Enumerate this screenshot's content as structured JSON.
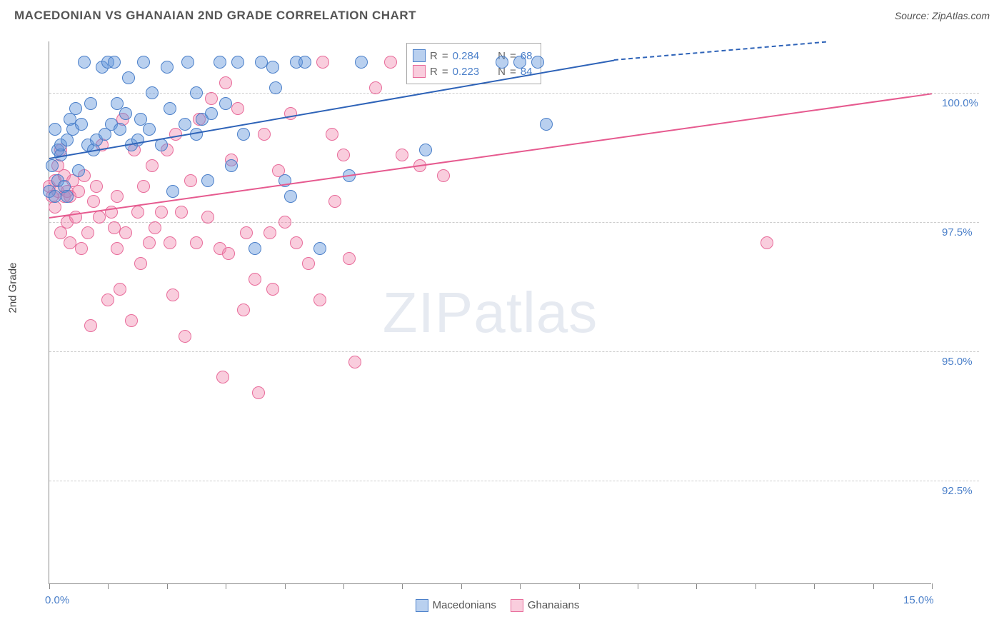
{
  "title": "MACEDONIAN VS GHANAIAN 2ND GRADE CORRELATION CHART",
  "source": "Source: ZipAtlas.com",
  "y_axis_title": "2nd Grade",
  "watermark_bold": "ZIP",
  "watermark_light": "atlas",
  "xlim": [
    0,
    15
  ],
  "ylim": [
    90.5,
    101
  ],
  "x_ticks": [
    0,
    1,
    2,
    3,
    4,
    5,
    6,
    7,
    8,
    9,
    10,
    11,
    12,
    13,
    14,
    15
  ],
  "x_labels": [
    {
      "v": 0,
      "t": "0.0%"
    },
    {
      "v": 15,
      "t": "15.0%"
    }
  ],
  "y_gridlines": [
    92.5,
    95.0,
    97.5,
    100.0
  ],
  "y_labels": [
    {
      "v": 92.5,
      "t": "92.5%"
    },
    {
      "v": 95.0,
      "t": "95.0%"
    },
    {
      "v": 97.5,
      "t": "97.5%"
    },
    {
      "v": 100.0,
      "t": "100.0%"
    }
  ],
  "series": [
    {
      "name": "Macedonians",
      "fill": "rgba(100,150,220,0.45)",
      "stroke": "#4a7fc9",
      "line_color": "#2e63b8",
      "R": "0.284",
      "N": "68",
      "trend": {
        "x1": 0,
        "y1": 98.75,
        "x2_solid": 9.6,
        "y2_solid": 100.65,
        "x2": 13.2,
        "y2": 101.0
      },
      "points": [
        [
          0.0,
          98.1
        ],
        [
          0.05,
          98.6
        ],
        [
          0.1,
          98.0
        ],
        [
          0.1,
          99.3
        ],
        [
          0.15,
          98.3
        ],
        [
          0.15,
          98.9
        ],
        [
          0.2,
          98.8
        ],
        [
          0.2,
          99.0
        ],
        [
          0.25,
          98.2
        ],
        [
          0.3,
          99.1
        ],
        [
          0.3,
          98.0
        ],
        [
          0.35,
          99.5
        ],
        [
          0.4,
          99.3
        ],
        [
          0.45,
          99.7
        ],
        [
          0.5,
          98.5
        ],
        [
          0.55,
          99.4
        ],
        [
          0.6,
          100.6
        ],
        [
          0.65,
          99.0
        ],
        [
          0.7,
          99.8
        ],
        [
          0.75,
          98.9
        ],
        [
          0.8,
          99.1
        ],
        [
          0.9,
          100.5
        ],
        [
          0.95,
          99.2
        ],
        [
          1.0,
          100.6
        ],
        [
          1.05,
          99.4
        ],
        [
          1.1,
          100.6
        ],
        [
          1.15,
          99.8
        ],
        [
          1.2,
          99.3
        ],
        [
          1.3,
          99.6
        ],
        [
          1.35,
          100.3
        ],
        [
          1.4,
          99.0
        ],
        [
          1.5,
          99.1
        ],
        [
          1.55,
          99.5
        ],
        [
          1.6,
          100.6
        ],
        [
          1.7,
          99.3
        ],
        [
          1.75,
          100.0
        ],
        [
          1.9,
          99.0
        ],
        [
          2.0,
          100.5
        ],
        [
          2.05,
          99.7
        ],
        [
          2.1,
          98.1
        ],
        [
          2.3,
          99.4
        ],
        [
          2.35,
          100.6
        ],
        [
          2.5,
          100.0
        ],
        [
          2.5,
          99.2
        ],
        [
          2.6,
          99.5
        ],
        [
          2.7,
          98.3
        ],
        [
          2.75,
          99.6
        ],
        [
          2.9,
          100.6
        ],
        [
          3.0,
          99.8
        ],
        [
          3.1,
          98.6
        ],
        [
          3.2,
          100.6
        ],
        [
          3.3,
          99.2
        ],
        [
          3.5,
          97.0
        ],
        [
          3.6,
          100.6
        ],
        [
          3.8,
          100.5
        ],
        [
          3.85,
          100.1
        ],
        [
          4.0,
          98.3
        ],
        [
          4.1,
          98.0
        ],
        [
          4.2,
          100.6
        ],
        [
          4.35,
          100.6
        ],
        [
          4.6,
          97.0
        ],
        [
          5.1,
          98.4
        ],
        [
          5.3,
          100.6
        ],
        [
          6.4,
          98.9
        ],
        [
          7.7,
          100.6
        ],
        [
          8.0,
          100.6
        ],
        [
          8.3,
          100.6
        ],
        [
          8.45,
          99.4
        ]
      ]
    },
    {
      "name": "Ghanaians",
      "fill": "rgba(240,130,170,0.40)",
      "stroke": "#e86b9a",
      "line_color": "#e65a8f",
      "R": "0.223",
      "N": "84",
      "trend": {
        "x1": 0,
        "y1": 97.6,
        "x2_solid": 15.0,
        "y2_solid": 100.0,
        "x2": 15.0,
        "y2": 100.0
      },
      "points": [
        [
          0.0,
          98.2
        ],
        [
          0.05,
          98.0
        ],
        [
          0.1,
          97.8
        ],
        [
          0.1,
          98.3
        ],
        [
          0.15,
          98.1
        ],
        [
          0.15,
          98.6
        ],
        [
          0.2,
          97.3
        ],
        [
          0.2,
          98.9
        ],
        [
          0.25,
          98.0
        ],
        [
          0.25,
          98.4
        ],
        [
          0.3,
          97.5
        ],
        [
          0.3,
          98.1
        ],
        [
          0.35,
          98.0
        ],
        [
          0.35,
          97.1
        ],
        [
          0.4,
          98.3
        ],
        [
          0.45,
          97.6
        ],
        [
          0.5,
          98.1
        ],
        [
          0.55,
          97.0
        ],
        [
          0.6,
          98.4
        ],
        [
          0.65,
          97.3
        ],
        [
          0.7,
          95.5
        ],
        [
          0.75,
          97.9
        ],
        [
          0.8,
          98.2
        ],
        [
          0.85,
          97.6
        ],
        [
          0.9,
          99.0
        ],
        [
          1.0,
          96.0
        ],
        [
          1.05,
          97.7
        ],
        [
          1.1,
          97.4
        ],
        [
          1.15,
          98.0
        ],
        [
          1.15,
          97.0
        ],
        [
          1.2,
          96.2
        ],
        [
          1.25,
          99.5
        ],
        [
          1.3,
          97.3
        ],
        [
          1.4,
          95.6
        ],
        [
          1.45,
          98.9
        ],
        [
          1.5,
          97.7
        ],
        [
          1.55,
          96.7
        ],
        [
          1.6,
          98.2
        ],
        [
          1.7,
          97.1
        ],
        [
          1.75,
          98.6
        ],
        [
          1.8,
          97.4
        ],
        [
          1.9,
          97.7
        ],
        [
          2.0,
          98.9
        ],
        [
          2.05,
          97.1
        ],
        [
          2.1,
          96.1
        ],
        [
          2.15,
          99.2
        ],
        [
          2.25,
          97.7
        ],
        [
          2.3,
          95.3
        ],
        [
          2.4,
          98.3
        ],
        [
          2.5,
          97.1
        ],
        [
          2.55,
          99.5
        ],
        [
          2.7,
          97.6
        ],
        [
          2.75,
          99.9
        ],
        [
          2.9,
          97.0
        ],
        [
          2.95,
          94.5
        ],
        [
          3.0,
          100.2
        ],
        [
          3.05,
          96.9
        ],
        [
          3.1,
          98.7
        ],
        [
          3.2,
          99.7
        ],
        [
          3.3,
          95.8
        ],
        [
          3.35,
          97.3
        ],
        [
          3.5,
          96.4
        ],
        [
          3.55,
          94.2
        ],
        [
          3.65,
          99.2
        ],
        [
          3.75,
          97.3
        ],
        [
          3.8,
          96.2
        ],
        [
          3.9,
          98.5
        ],
        [
          4.0,
          97.5
        ],
        [
          4.1,
          99.6
        ],
        [
          4.2,
          97.1
        ],
        [
          4.4,
          96.7
        ],
        [
          4.6,
          96.0
        ],
        [
          4.65,
          100.6
        ],
        [
          4.8,
          99.2
        ],
        [
          4.85,
          97.9
        ],
        [
          5.0,
          98.8
        ],
        [
          5.1,
          96.8
        ],
        [
          5.2,
          94.8
        ],
        [
          5.55,
          100.1
        ],
        [
          5.8,
          100.6
        ],
        [
          6.0,
          98.8
        ],
        [
          6.3,
          98.6
        ],
        [
          6.7,
          98.4
        ],
        [
          12.2,
          97.1
        ]
      ]
    }
  ],
  "bottom_legend": [
    {
      "label": "Macedonians",
      "fill": "rgba(100,150,220,0.45)",
      "stroke": "#4a7fc9"
    },
    {
      "label": "Ghanaians",
      "fill": "rgba(240,130,170,0.40)",
      "stroke": "#e86b9a"
    }
  ],
  "stat_legend_labels": {
    "R": "R",
    "N": "N",
    "eq": " = "
  }
}
